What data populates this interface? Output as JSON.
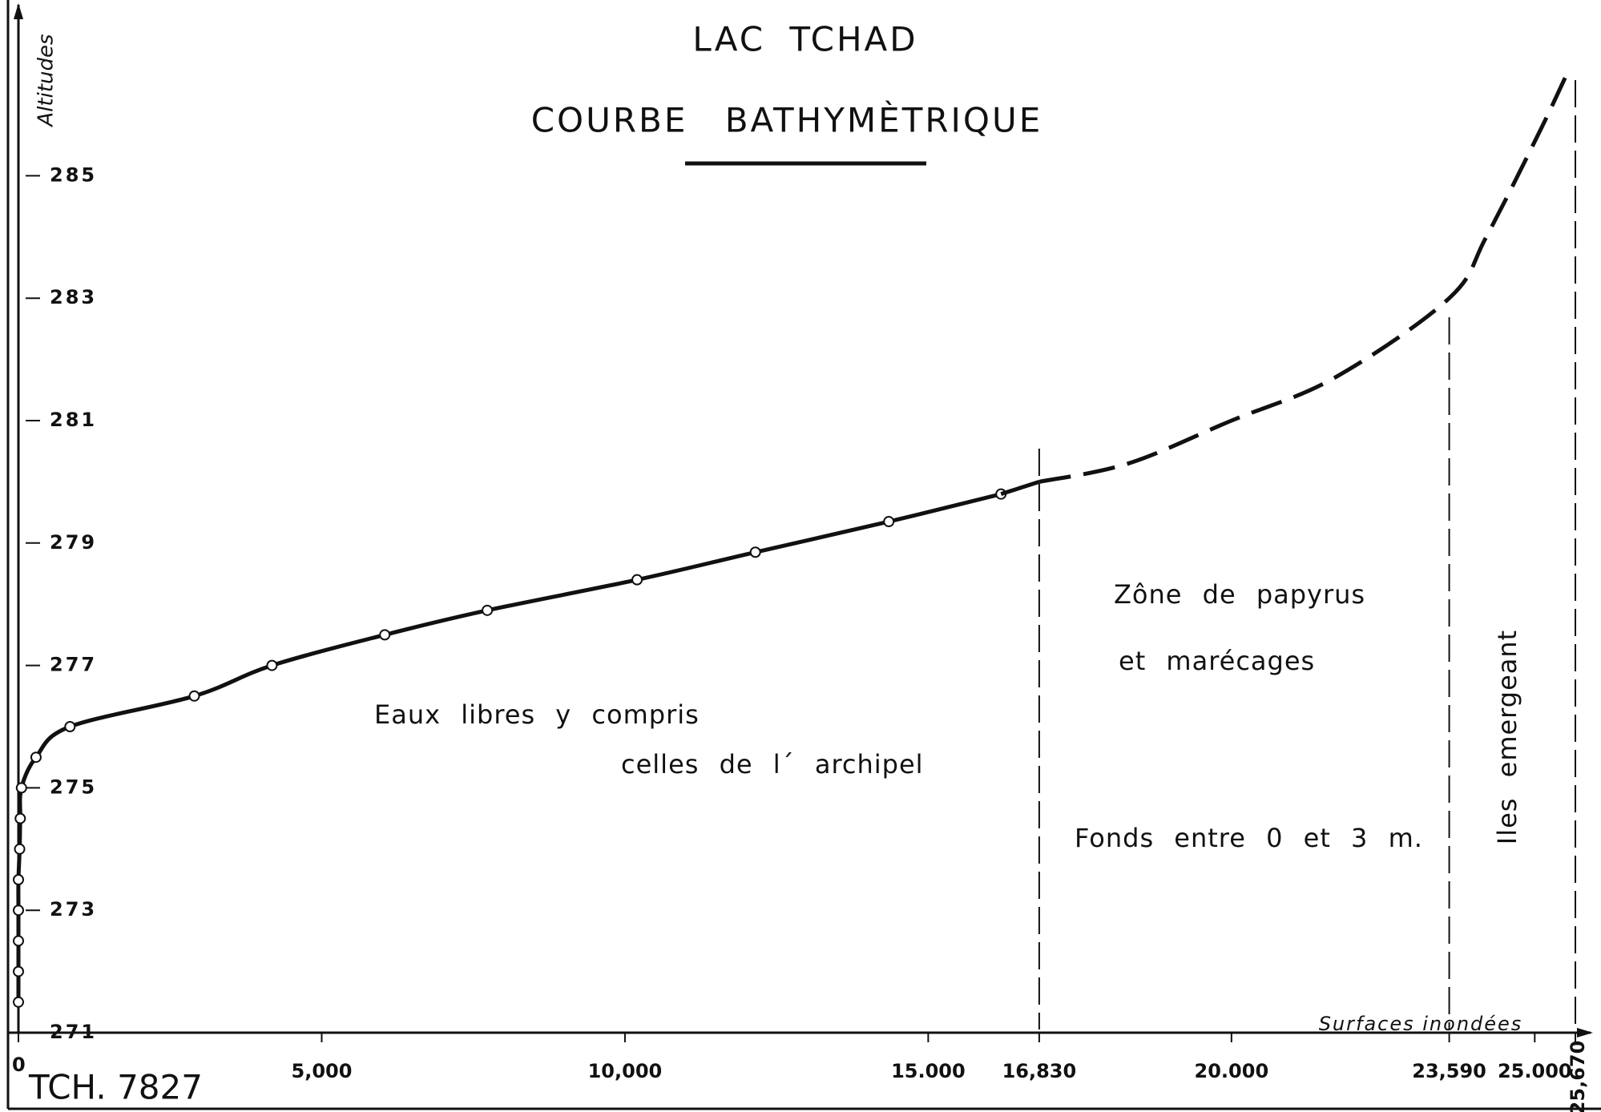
{
  "chart_data": {
    "type": "line",
    "title": "LAC TCHAD",
    "subtitle": "COURBE BATHYMÈTRIQUE",
    "y_label": "Altitudes",
    "x_label": "Surfaces inondées",
    "reference": "TCH. 7827",
    "annotations": [
      "Eaux libres y compris",
      "celles de l´ archipel",
      "Zône de papyrus",
      "et marécages",
      "Fonds entre 0 et 3 m.",
      "Iles emergeant"
    ],
    "xlim": [
      0,
      26000
    ],
    "ylim": [
      271,
      287.5
    ],
    "xticks": [
      0,
      {
        "value": 5000,
        "label": "5,000"
      },
      {
        "value": 10000,
        "label": "10,000"
      },
      {
        "value": 15000,
        "label": "15.000"
      },
      {
        "value": 16830,
        "label": "16,830"
      },
      {
        "value": 20000,
        "label": "20.000"
      },
      {
        "value": 23590,
        "label": "23,590"
      },
      {
        "value": 25000,
        "label": "25.000"
      },
      {
        "value": 25670,
        "label": "25,670"
      }
    ],
    "yticks": [
      271,
      273,
      275,
      277,
      279,
      281,
      283,
      285
    ],
    "zone_limits": [
      4,
      6,
      8
    ],
    "series": [
      {
        "color": "#111111",
        "style": "solid",
        "markers": true,
        "x": [
          0,
          0,
          0,
          0,
          0,
          20,
          30,
          50,
          290,
          850,
          2900,
          4180,
          6040,
          7730,
          10200,
          12150,
          14350,
          16200
        ],
        "values": [
          271.5,
          272,
          272.5,
          273,
          273.5,
          274,
          274.5,
          275,
          275.5,
          276,
          276.5,
          277,
          277.5,
          277.9,
          278.4,
          278.85,
          279.35,
          279.8
        ]
      },
      {
        "color": "#111111",
        "style": "dashed",
        "markers": false,
        "x": [
          16830,
          18300,
          20000,
          21700,
          23590,
          24200,
          25070,
          25500
        ],
        "values": [
          280,
          280.3,
          281,
          281.7,
          283,
          284,
          285.7,
          286.6
        ]
      }
    ]
  }
}
